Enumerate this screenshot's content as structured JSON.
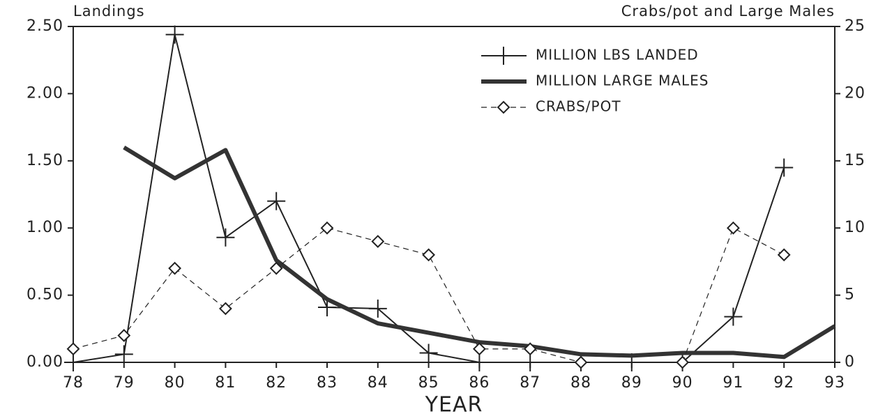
{
  "chart_data": {
    "type": "line",
    "left_axis_title": "Landings",
    "right_axis_title": "Crabs/pot and Large Males",
    "x_label": "YEAR",
    "categories": [
      "78",
      "79",
      "80",
      "81",
      "82",
      "83",
      "84",
      "85",
      "86",
      "87",
      "88",
      "89",
      "90",
      "91",
      "92",
      "93"
    ],
    "ylim": [
      0,
      2.5
    ],
    "yticks": [
      {
        "value": 0,
        "label": "0.00"
      },
      {
        "value": 0.5,
        "label": "0.50"
      },
      {
        "value": 1,
        "label": "1.00"
      },
      {
        "value": 1.5,
        "label": "1.50"
      },
      {
        "value": 2,
        "label": "2.00"
      },
      {
        "value": 2.5,
        "label": "2.50"
      }
    ],
    "y2lim": [
      0,
      25
    ],
    "y2ticks": [
      0,
      5,
      10,
      15,
      20,
      25
    ],
    "legend": "upper right",
    "series": [
      {
        "name": "MILLION LBS LANDED",
        "color": "#222222",
        "marker": "plus",
        "line_width": 2,
        "dashed": false,
        "values": [
          0,
          0.06,
          2.44,
          0.93,
          1.2,
          0.41,
          0.4,
          0.07,
          0,
          0,
          0,
          0,
          0,
          0.34,
          1.45,
          null
        ]
      },
      {
        "name": "MILLION LARGE MALES",
        "color": "#333333",
        "marker": "none",
        "line_width": 6,
        "dashed": false,
        "axis": "y2",
        "values": [
          null,
          16.0,
          13.7,
          15.8,
          7.6,
          4.7,
          2.9,
          2.2,
          1.5,
          1.2,
          0.6,
          0.5,
          0.7,
          0.7,
          0.4,
          2.7
        ]
      },
      {
        "name": "CRABS/POT",
        "color": "#222222",
        "marker": "diamond",
        "line_width": 1.2,
        "dashed": true,
        "axis": "y2",
        "values": [
          1,
          2,
          7,
          4,
          7,
          10,
          9,
          8,
          1,
          1,
          0,
          null,
          0,
          10,
          8,
          null
        ]
      }
    ]
  }
}
